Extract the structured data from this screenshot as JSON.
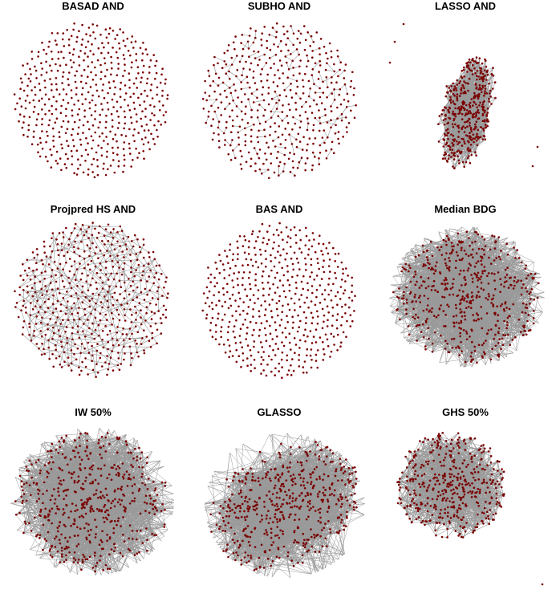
{
  "figure": {
    "panels": [
      {
        "id": "basad-and",
        "title": "BASAD AND",
        "layout": "circle",
        "edges": "none",
        "edge_density": 0,
        "nodes": 520
      },
      {
        "id": "subho-and",
        "title": "SUBHO AND",
        "layout": "circle",
        "edges": "chains",
        "edge_density": 1,
        "nodes": 460
      },
      {
        "id": "lasso-and",
        "title": "LASSO AND",
        "layout": "elongated-cluster",
        "edges": "dense-core",
        "edge_density": 3,
        "nodes": 420
      },
      {
        "id": "projpred-hs-and",
        "title": "Projpred HS AND",
        "layout": "circle",
        "edges": "sparse-tree",
        "edge_density": 2,
        "nodes": 520
      },
      {
        "id": "bas-and",
        "title": "BAS AND",
        "layout": "circle",
        "edges": "none",
        "edge_density": 0,
        "nodes": 520
      },
      {
        "id": "median-bdg",
        "title": "Median BDG",
        "layout": "star-blob",
        "edges": "dense",
        "edge_density": 5,
        "nodes": 520
      },
      {
        "id": "iw-50",
        "title": "IW 50%",
        "layout": "star-blob",
        "edges": "dense",
        "edge_density": 5,
        "nodes": 520
      },
      {
        "id": "glasso",
        "title": "GLASSO",
        "layout": "tilted-blob",
        "edges": "dense",
        "edge_density": 5,
        "nodes": 520
      },
      {
        "id": "ghs-50",
        "title": "GHS 50%",
        "layout": "small-blob",
        "edges": "medium",
        "edge_density": 4,
        "nodes": 440
      }
    ],
    "colors": {
      "node": "#7a0000",
      "edge": "#9a9a9a",
      "background": "#ffffff"
    }
  }
}
